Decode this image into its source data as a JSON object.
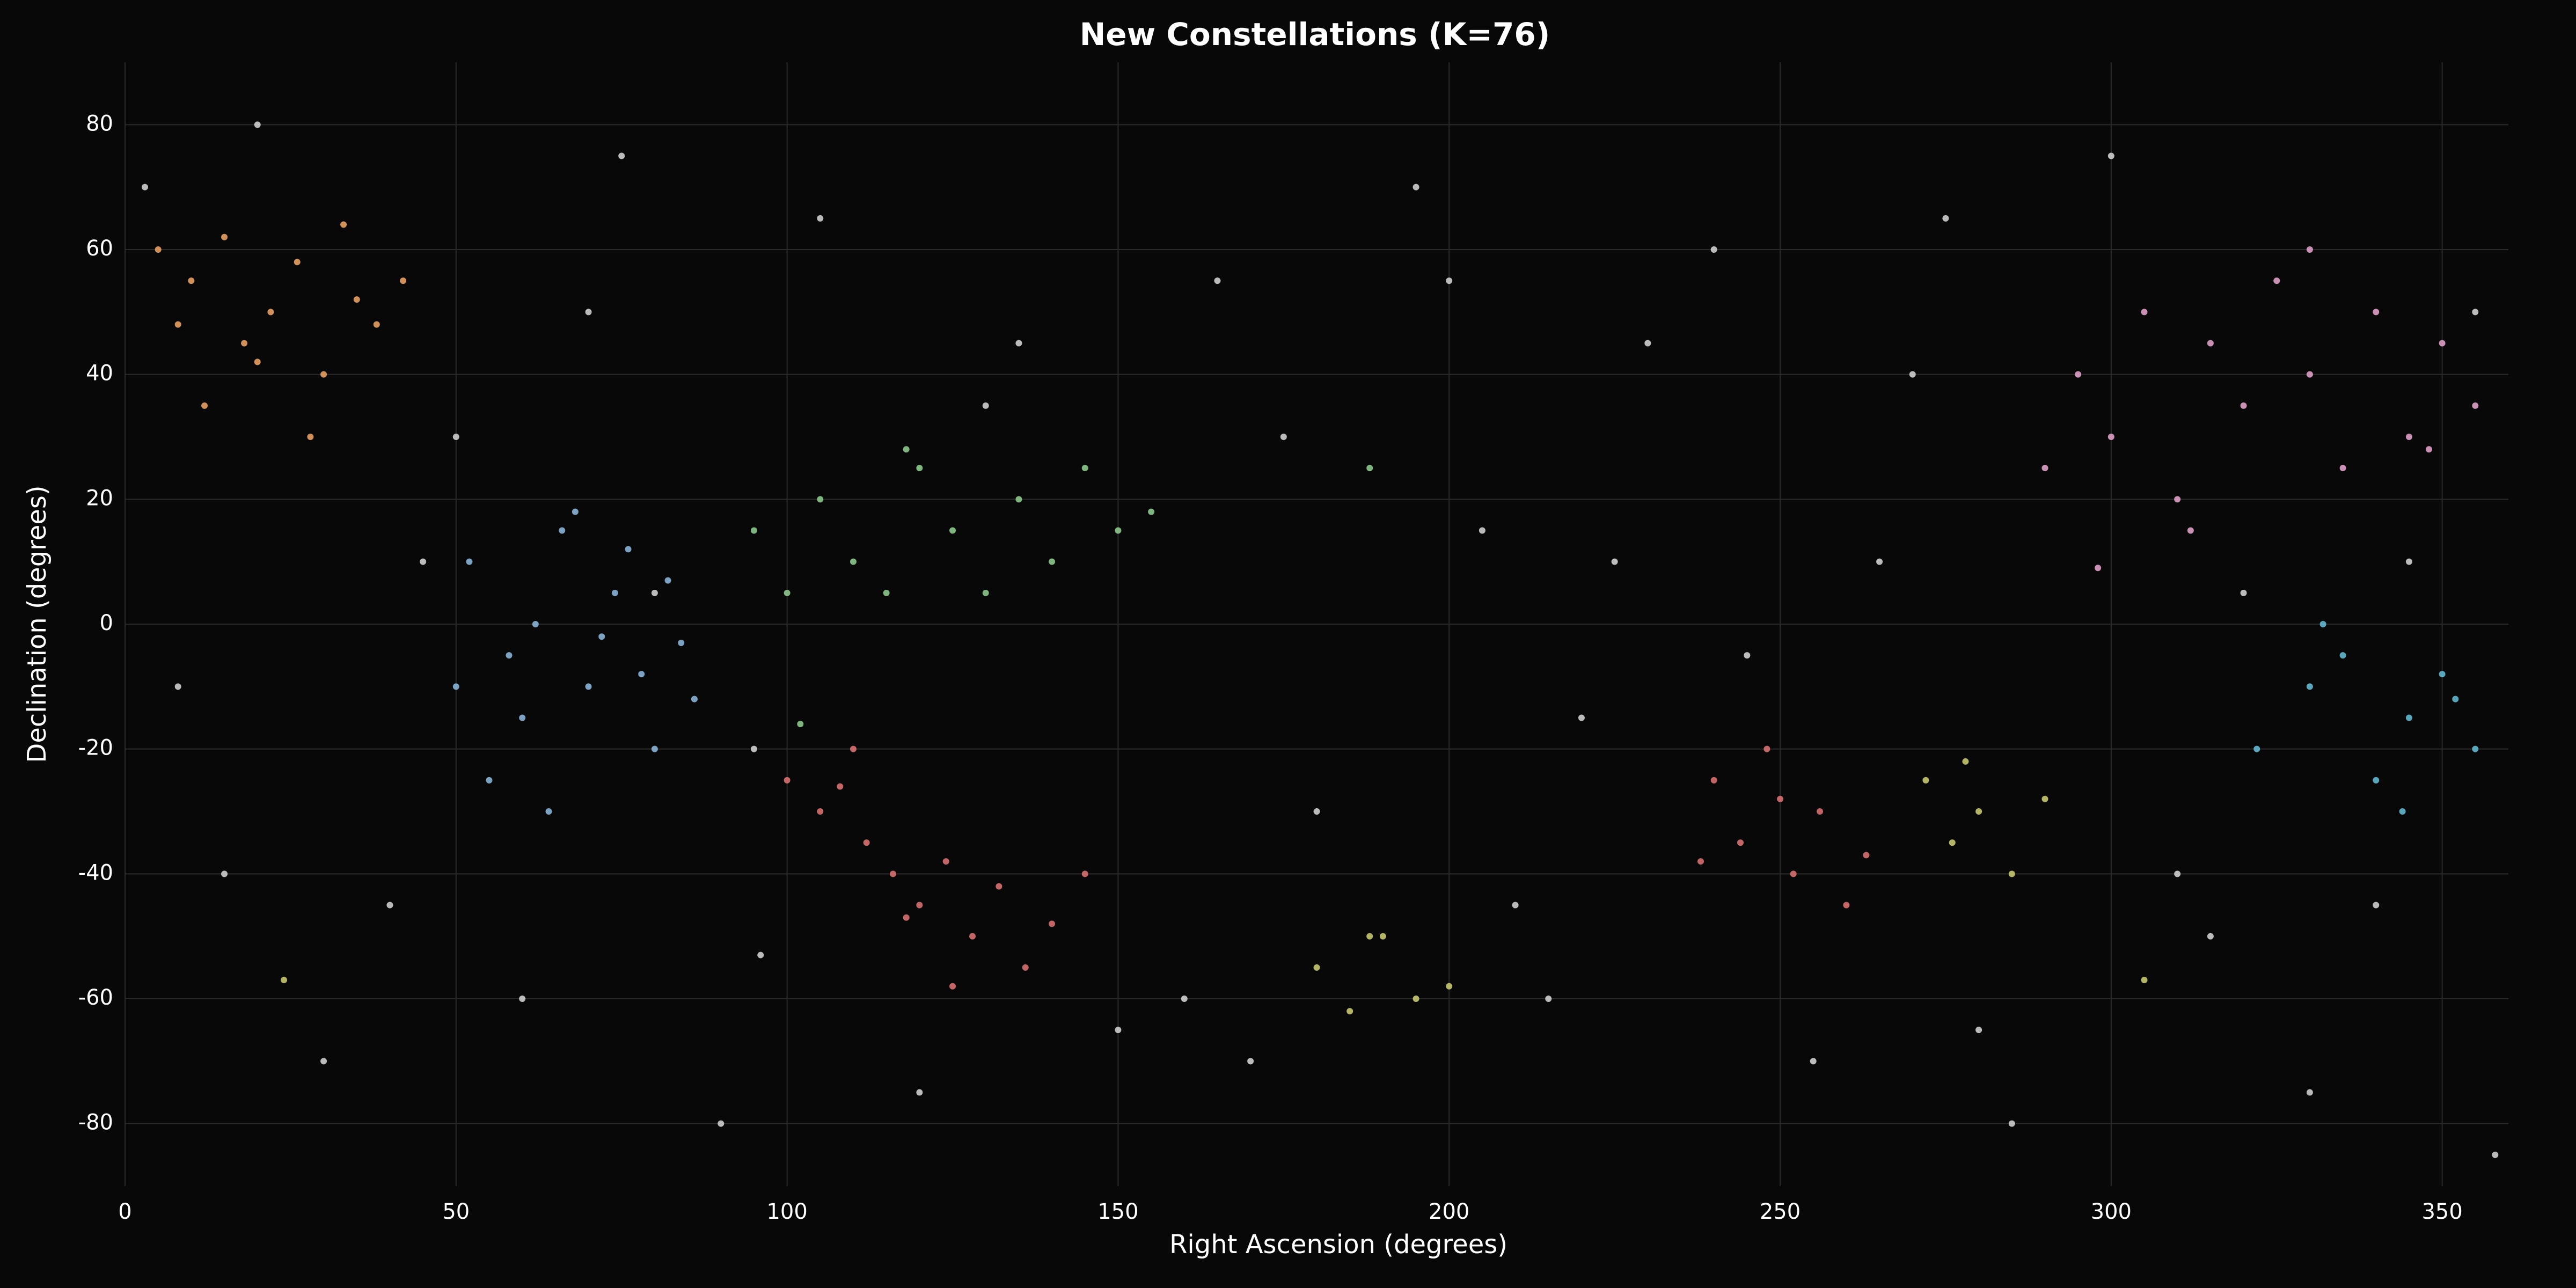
{
  "chart_data": {
    "type": "scatter",
    "title": "New Constellations (K=76)",
    "x_label": "Right Ascension (degrees)",
    "y_label": "Declination (degrees)",
    "xlim": [
      0,
      360
    ],
    "ylim": [
      -90,
      90
    ],
    "xticks": [
      0,
      50,
      100,
      150,
      200,
      250,
      300,
      350
    ],
    "yticks": [
      -80,
      -60,
      -40,
      -20,
      0,
      20,
      40,
      60,
      80
    ],
    "grid": true,
    "background": "#080808",
    "series": [
      {
        "color": "#cfcfcf",
        "x": [
          3,
          15,
          30,
          45,
          60,
          75,
          90,
          105,
          120,
          135,
          150,
          165,
          180,
          195,
          210,
          225,
          240,
          255,
          270,
          285,
          300,
          315,
          330,
          345,
          358,
          8,
          40,
          70,
          95,
          160,
          175,
          205,
          215,
          230,
          265,
          280,
          310,
          340,
          20,
          50,
          80,
          130,
          170,
          200,
          220,
          245,
          275,
          320,
          355,
          96
        ],
        "values": [
          70,
          -40,
          -70,
          10,
          -60,
          75,
          -80,
          65,
          -75,
          45,
          -65,
          55,
          -30,
          70,
          -45,
          10,
          60,
          -70,
          40,
          -80,
          75,
          -50,
          -75,
          10,
          -85,
          -10,
          -45,
          50,
          -20,
          -60,
          30,
          15,
          -60,
          45,
          10,
          -65,
          -40,
          -45,
          80,
          30,
          5,
          35,
          -70,
          55,
          -15,
          -5,
          65,
          5,
          50,
          -53
        ]
      },
      {
        "color": "#e8a060",
        "x": [
          5,
          10,
          15,
          18,
          22,
          26,
          30,
          33,
          38,
          42,
          12,
          28,
          35,
          8,
          20
        ],
        "values": [
          60,
          55,
          62,
          45,
          50,
          58,
          40,
          64,
          48,
          55,
          35,
          30,
          52,
          48,
          42
        ]
      },
      {
        "color": "#8ab4d8",
        "x": [
          52,
          58,
          62,
          66,
          70,
          74,
          78,
          80,
          82,
          55,
          60,
          68,
          72,
          76,
          84,
          64,
          50,
          86
        ],
        "values": [
          10,
          -5,
          0,
          15,
          -10,
          5,
          -8,
          -20,
          7,
          -25,
          -15,
          18,
          -2,
          12,
          -3,
          -30,
          -10,
          -12
        ]
      },
      {
        "color": "#8cc88c",
        "x": [
          95,
          100,
          105,
          110,
          115,
          120,
          125,
          130,
          135,
          140,
          145,
          150,
          155,
          102,
          118,
          188
        ],
        "values": [
          15,
          5,
          20,
          10,
          5,
          25,
          15,
          5,
          20,
          10,
          25,
          15,
          18,
          -16,
          28,
          25
        ]
      },
      {
        "color": "#d87070",
        "x": [
          100,
          105,
          108,
          112,
          116,
          120,
          124,
          128,
          132,
          136,
          140,
          145,
          110,
          125,
          118,
          240,
          244,
          248,
          252,
          256,
          260,
          238,
          250,
          263
        ],
        "values": [
          -25,
          -30,
          -26,
          -35,
          -40,
          -45,
          -38,
          -50,
          -42,
          -55,
          -48,
          -40,
          -20,
          -58,
          -47,
          -25,
          -35,
          -20,
          -40,
          -30,
          -45,
          -38,
          -28,
          -37
        ]
      },
      {
        "color": "#e0a0c8",
        "x": [
          290,
          295,
          300,
          305,
          310,
          315,
          320,
          325,
          330,
          335,
          340,
          345,
          350,
          355,
          298,
          312,
          330,
          348
        ],
        "values": [
          25,
          40,
          30,
          50,
          20,
          45,
          35,
          55,
          40,
          25,
          50,
          30,
          45,
          35,
          9,
          15,
          60,
          28
        ]
      },
      {
        "color": "#60b8d0",
        "x": [
          322,
          330,
          335,
          340,
          345,
          350,
          355,
          332,
          344,
          352
        ],
        "values": [
          -20,
          -10,
          -5,
          -25,
          -15,
          -8,
          -20,
          0,
          -30,
          -12
        ]
      },
      {
        "color": "#c8c870",
        "x": [
          180,
          185,
          190,
          195,
          200,
          188,
          272,
          276,
          280,
          285,
          290,
          278,
          24,
          305
        ],
        "values": [
          -55,
          -62,
          -50,
          -60,
          -58,
          -50,
          -25,
          -35,
          -30,
          -40,
          -28,
          -22,
          -57,
          -57
        ]
      }
    ]
  }
}
